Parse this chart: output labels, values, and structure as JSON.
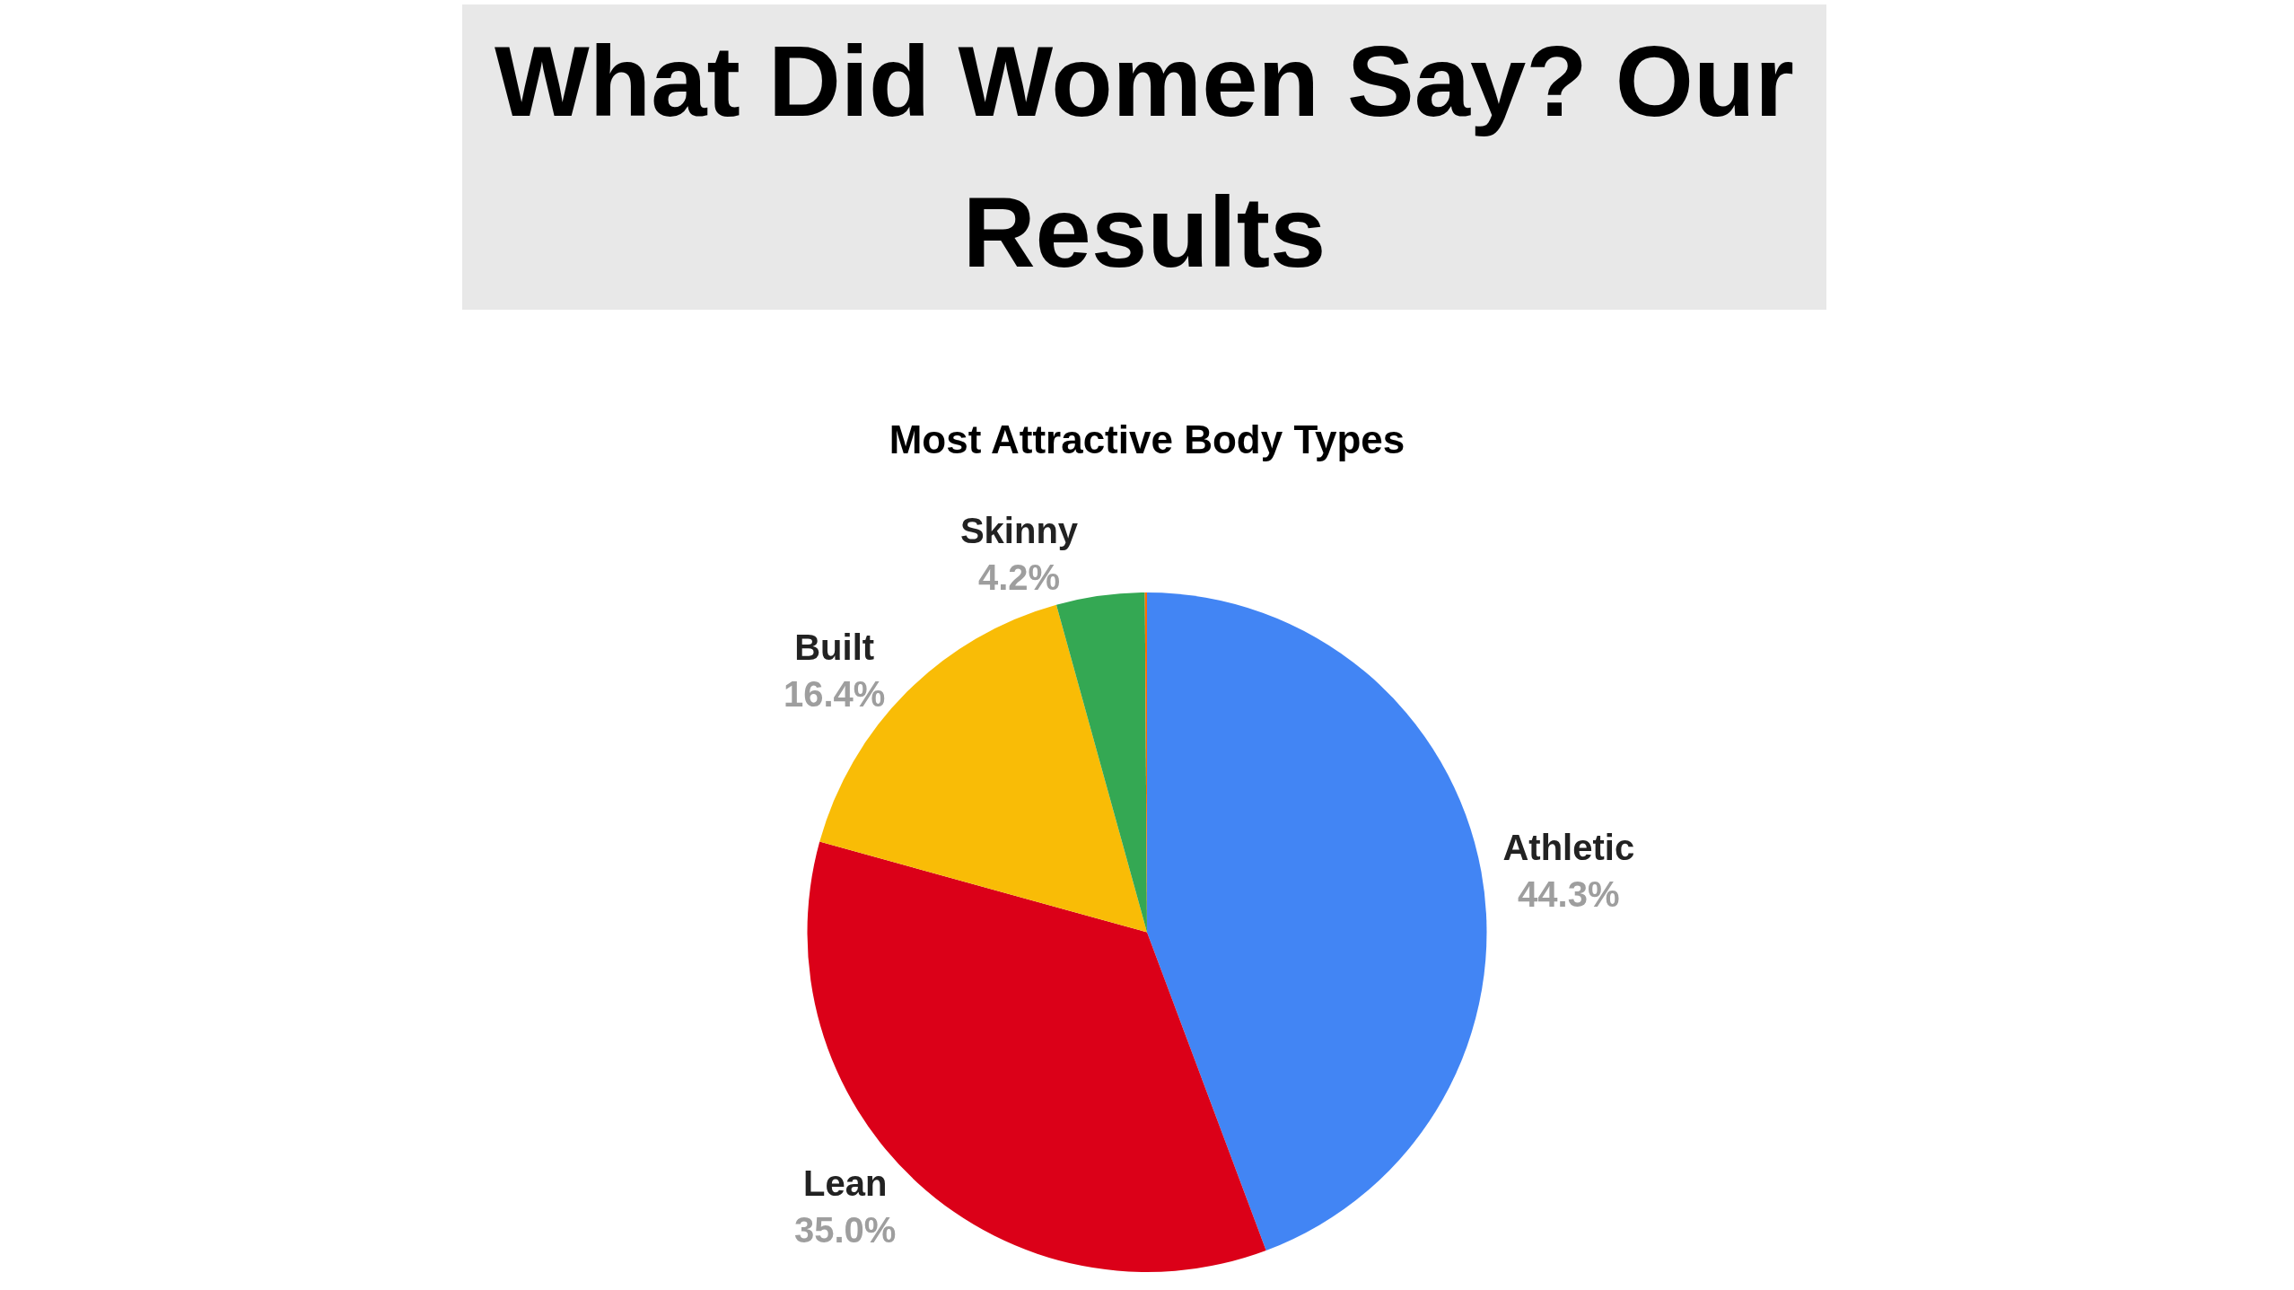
{
  "chart_data": {
    "type": "pie",
    "title": "What Did Women Say? Our Results",
    "subtitle": "Most Attractive Body Types",
    "categories": [
      "Athletic",
      "Lean",
      "Built",
      "Skinny",
      null
    ],
    "values": [
      44.3,
      35.0,
      16.4,
      4.2,
      0.1
    ],
    "value_labels": [
      "44.3%",
      "35.0%",
      "16.4%",
      "4.2%",
      null
    ],
    "colors": [
      "#4285f4",
      "#db0018",
      "#f9bc06",
      "#34a853",
      "#ff6d01"
    ],
    "legend": false
  }
}
